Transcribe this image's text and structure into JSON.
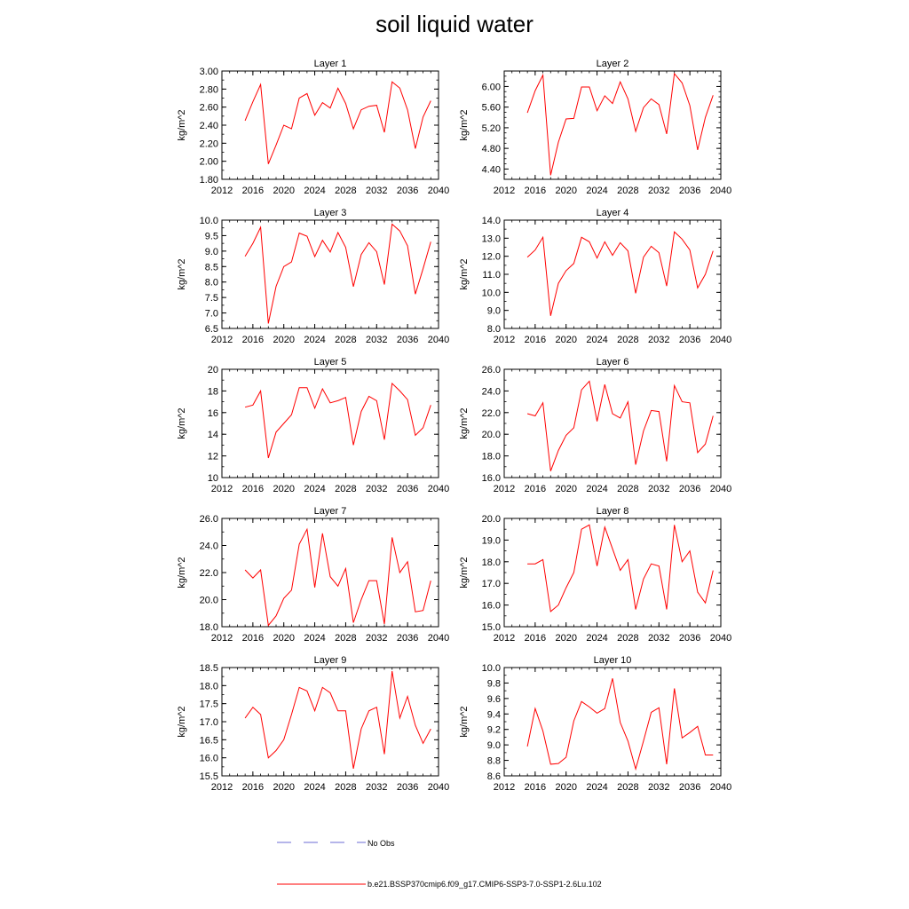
{
  "figure": {
    "title": "soil liquid water",
    "legend": [
      {
        "label": "No Obs",
        "style": "dashed",
        "color": "#6b6bd6"
      },
      {
        "label": "b.e21.BSSP370cmip6.f09_g17.CMIP6-SSP3-7.0-SSP1-2.6Lu.102",
        "style": "solid",
        "color": "#ff0000"
      }
    ]
  },
  "chart_data": [
    {
      "type": "line",
      "title": "Layer 1",
      "ylabel": "kg/m^2",
      "xlim": [
        2012,
        2040
      ],
      "xticks": [
        2012,
        2016,
        2020,
        2024,
        2028,
        2032,
        2036,
        2040
      ],
      "ylim": [
        1.8,
        3.0
      ],
      "yticks": [
        "1.80",
        "2.00",
        "2.20",
        "2.40",
        "2.60",
        "2.80",
        "3.00"
      ],
      "yminor": 0.1,
      "x": [
        2015,
        2016,
        2017,
        2018,
        2019,
        2020,
        2021,
        2022,
        2023,
        2024,
        2025,
        2026,
        2027,
        2028,
        2029,
        2030,
        2031,
        2032,
        2033,
        2034,
        2035,
        2036,
        2037,
        2038,
        2039
      ],
      "series": [
        {
          "name": "b.e21.BSSP370cmip6.f09_g17.CMIP6-SSP3-7.0-SSP1-2.6Lu.102",
          "color": "#ff0000",
          "values": [
            2.45,
            2.66,
            2.85,
            1.97,
            2.18,
            2.4,
            2.36,
            2.7,
            2.75,
            2.51,
            2.65,
            2.59,
            2.81,
            2.64,
            2.36,
            2.57,
            2.61,
            2.62,
            2.32,
            2.88,
            2.81,
            2.57,
            2.14,
            2.49,
            2.67
          ]
        }
      ]
    },
    {
      "type": "line",
      "title": "Layer 2",
      "ylabel": "kg/m^2",
      "xlim": [
        2012,
        2040
      ],
      "xticks": [
        2012,
        2016,
        2020,
        2024,
        2028,
        2032,
        2036,
        2040
      ],
      "ylim": [
        4.2,
        6.3
      ],
      "yticks": [
        "4.40",
        "4.80",
        "5.20",
        "5.60",
        "6.00"
      ],
      "ytickvals": [
        4.4,
        4.8,
        5.2,
        5.6,
        6.0
      ],
      "yminor": 0.1,
      "x": [
        2015,
        2016,
        2017,
        2018,
        2019,
        2020,
        2021,
        2022,
        2023,
        2024,
        2025,
        2026,
        2027,
        2028,
        2029,
        2030,
        2031,
        2032,
        2033,
        2034,
        2035,
        2036,
        2037,
        2038,
        2039
      ],
      "series": [
        {
          "name": "b.e21.BSSP370cmip6.f09_g17.CMIP6-SSP3-7.0-SSP1-2.6Lu.102",
          "color": "#ff0000",
          "values": [
            5.49,
            5.92,
            6.22,
            4.28,
            4.92,
            5.37,
            5.38,
            5.99,
            5.99,
            5.53,
            5.82,
            5.67,
            6.09,
            5.76,
            5.13,
            5.59,
            5.76,
            5.65,
            5.08,
            6.25,
            6.07,
            5.63,
            4.77,
            5.4,
            5.83
          ]
        }
      ]
    },
    {
      "type": "line",
      "title": "Layer 3",
      "ylabel": "kg/m^2",
      "xlim": [
        2012,
        2040
      ],
      "xticks": [
        2012,
        2016,
        2020,
        2024,
        2028,
        2032,
        2036,
        2040
      ],
      "ylim": [
        6.5,
        10.0
      ],
      "yticks": [
        "6.5",
        "7.0",
        "7.5",
        "8.0",
        "8.5",
        "9.0",
        "9.5",
        "10.0"
      ],
      "yminor": 0.25,
      "x": [
        2015,
        2016,
        2017,
        2018,
        2019,
        2020,
        2021,
        2022,
        2023,
        2024,
        2025,
        2026,
        2027,
        2028,
        2029,
        2030,
        2031,
        2032,
        2033,
        2034,
        2035,
        2036,
        2037,
        2038,
        2039
      ],
      "series": [
        {
          "name": "b.e21.BSSP370cmip6.f09_g17.CMIP6-SSP3-7.0-SSP1-2.6Lu.102",
          "color": "#ff0000",
          "values": [
            8.83,
            9.25,
            9.77,
            6.66,
            7.86,
            8.5,
            8.65,
            9.58,
            9.48,
            8.82,
            9.35,
            8.97,
            9.6,
            9.12,
            7.85,
            8.89,
            9.27,
            8.98,
            7.92,
            9.87,
            9.65,
            9.17,
            7.61,
            8.43,
            9.3
          ]
        }
      ]
    },
    {
      "type": "line",
      "title": "Layer 4",
      "ylabel": "kg/m^2",
      "xlim": [
        2012,
        2040
      ],
      "xticks": [
        2012,
        2016,
        2020,
        2024,
        2028,
        2032,
        2036,
        2040
      ],
      "ylim": [
        8.0,
        14.0
      ],
      "yticks": [
        "8.0",
        "9.0",
        "10.0",
        "11.0",
        "12.0",
        "13.0",
        "14.0"
      ],
      "yminor": 0.5,
      "x": [
        2015,
        2016,
        2017,
        2018,
        2019,
        2020,
        2021,
        2022,
        2023,
        2024,
        2025,
        2026,
        2027,
        2028,
        2029,
        2030,
        2031,
        2032,
        2033,
        2034,
        2035,
        2036,
        2037,
        2038,
        2039
      ],
      "series": [
        {
          "name": "b.e21.BSSP370cmip6.f09_g17.CMIP6-SSP3-7.0-SSP1-2.6Lu.102",
          "color": "#ff0000",
          "values": [
            11.95,
            12.35,
            13.05,
            8.7,
            10.5,
            11.2,
            11.6,
            13.05,
            12.8,
            11.9,
            12.8,
            12.05,
            12.75,
            12.3,
            9.95,
            11.95,
            12.55,
            12.2,
            10.35,
            13.35,
            12.95,
            12.35,
            10.25,
            11.0,
            12.3
          ]
        }
      ]
    },
    {
      "type": "line",
      "title": "Layer 5",
      "ylabel": "kg/m^2",
      "xlim": [
        2012,
        2040
      ],
      "xticks": [
        2012,
        2016,
        2020,
        2024,
        2028,
        2032,
        2036,
        2040
      ],
      "ylim": [
        10,
        20
      ],
      "yticks": [
        "10",
        "12",
        "14",
        "16",
        "18",
        "20"
      ],
      "yminor": 1,
      "x": [
        2015,
        2016,
        2017,
        2018,
        2019,
        2020,
        2021,
        2022,
        2023,
        2024,
        2025,
        2026,
        2027,
        2028,
        2029,
        2030,
        2031,
        2032,
        2033,
        2034,
        2035,
        2036,
        2037,
        2038,
        2039
      ],
      "series": [
        {
          "name": "b.e21.BSSP370cmip6.f09_g17.CMIP6-SSP3-7.0-SSP1-2.6Lu.102",
          "color": "#ff0000",
          "values": [
            16.5,
            16.7,
            18.0,
            11.8,
            14.2,
            15.0,
            15.8,
            18.3,
            18.3,
            16.4,
            18.2,
            16.9,
            17.1,
            17.4,
            13.0,
            16.1,
            17.5,
            17.1,
            13.5,
            18.7,
            18.0,
            17.2,
            13.9,
            14.6,
            16.7
          ]
        }
      ]
    },
    {
      "type": "line",
      "title": "Layer 6",
      "ylabel": "kg/m^2",
      "xlim": [
        2012,
        2040
      ],
      "xticks": [
        2012,
        2016,
        2020,
        2024,
        2028,
        2032,
        2036,
        2040
      ],
      "ylim": [
        16.0,
        26.0
      ],
      "yticks": [
        "16.0",
        "18.0",
        "20.0",
        "22.0",
        "24.0",
        "26.0"
      ],
      "yminor": 1,
      "x": [
        2015,
        2016,
        2017,
        2018,
        2019,
        2020,
        2021,
        2022,
        2023,
        2024,
        2025,
        2026,
        2027,
        2028,
        2029,
        2030,
        2031,
        2032,
        2033,
        2034,
        2035,
        2036,
        2037,
        2038,
        2039
      ],
      "series": [
        {
          "name": "b.e21.BSSP370cmip6.f09_g17.CMIP6-SSP3-7.0-SSP1-2.6Lu.102",
          "color": "#ff0000",
          "values": [
            21.9,
            21.7,
            22.9,
            16.6,
            18.5,
            19.9,
            20.6,
            24.1,
            24.9,
            21.2,
            24.6,
            21.9,
            21.5,
            23.0,
            17.2,
            20.3,
            22.2,
            22.1,
            17.5,
            24.5,
            23.0,
            22.9,
            18.3,
            19.1,
            21.7
          ]
        }
      ]
    },
    {
      "type": "line",
      "title": "Layer 7",
      "ylabel": "kg/m^2",
      "xlim": [
        2012,
        2040
      ],
      "xticks": [
        2012,
        2016,
        2020,
        2024,
        2028,
        2032,
        2036,
        2040
      ],
      "ylim": [
        18.0,
        26.0
      ],
      "yticks": [
        "18.0",
        "20.0",
        "22.0",
        "24.0",
        "26.0"
      ],
      "yminor": 1,
      "x": [
        2015,
        2016,
        2017,
        2018,
        2019,
        2020,
        2021,
        2022,
        2023,
        2024,
        2025,
        2026,
        2027,
        2028,
        2029,
        2030,
        2031,
        2032,
        2033,
        2034,
        2035,
        2036,
        2037,
        2038,
        2039
      ],
      "series": [
        {
          "name": "b.e21.BSSP370cmip6.f09_g17.CMIP6-SSP3-7.0-SSP1-2.6Lu.102",
          "color": "#ff0000",
          "values": [
            22.2,
            21.6,
            22.2,
            18.1,
            18.8,
            20.1,
            20.7,
            24.1,
            25.2,
            20.9,
            24.9,
            21.7,
            21.0,
            22.3,
            18.3,
            20.0,
            21.4,
            21.4,
            18.2,
            24.6,
            22.0,
            22.8,
            19.1,
            19.2,
            21.4
          ]
        }
      ]
    },
    {
      "type": "line",
      "title": "Layer 8",
      "ylabel": "kg/m^2",
      "xlim": [
        2012,
        2040
      ],
      "xticks": [
        2012,
        2016,
        2020,
        2024,
        2028,
        2032,
        2036,
        2040
      ],
      "ylim": [
        15.0,
        20.0
      ],
      "yticks": [
        "15.0",
        "16.0",
        "17.0",
        "18.0",
        "19.0",
        "20.0"
      ],
      "yminor": 0.5,
      "x": [
        2015,
        2016,
        2017,
        2018,
        2019,
        2020,
        2021,
        2022,
        2023,
        2024,
        2025,
        2026,
        2027,
        2028,
        2029,
        2030,
        2031,
        2032,
        2033,
        2034,
        2035,
        2036,
        2037,
        2038,
        2039
      ],
      "series": [
        {
          "name": "b.e21.BSSP370cmip6.f09_g17.CMIP6-SSP3-7.0-SSP1-2.6Lu.102",
          "color": "#ff0000",
          "values": [
            17.9,
            17.9,
            18.1,
            15.7,
            16.0,
            16.8,
            17.5,
            19.5,
            19.7,
            17.8,
            19.6,
            18.6,
            17.6,
            18.1,
            15.8,
            17.2,
            17.9,
            17.8,
            15.8,
            19.7,
            18.0,
            18.5,
            16.6,
            16.1,
            17.6
          ]
        }
      ]
    },
    {
      "type": "line",
      "title": "Layer 9",
      "ylabel": "kg/m^2",
      "xlim": [
        2012,
        2040
      ],
      "xticks": [
        2012,
        2016,
        2020,
        2024,
        2028,
        2032,
        2036,
        2040
      ],
      "ylim": [
        15.5,
        18.5
      ],
      "yticks": [
        "15.5",
        "16.0",
        "16.5",
        "17.0",
        "17.5",
        "18.0",
        "18.5"
      ],
      "yminor": 0.25,
      "x": [
        2015,
        2016,
        2017,
        2018,
        2019,
        2020,
        2021,
        2022,
        2023,
        2024,
        2025,
        2026,
        2027,
        2028,
        2029,
        2030,
        2031,
        2032,
        2033,
        2034,
        2035,
        2036,
        2037,
        2038,
        2039
      ],
      "series": [
        {
          "name": "b.e21.BSSP370cmip6.f09_g17.CMIP6-SSP3-7.0-SSP1-2.6Lu.102",
          "color": "#ff0000",
          "values": [
            17.1,
            17.4,
            17.2,
            16.0,
            16.2,
            16.5,
            17.2,
            17.95,
            17.85,
            17.3,
            17.95,
            17.8,
            17.3,
            17.3,
            15.7,
            16.8,
            17.3,
            17.4,
            16.1,
            18.4,
            17.1,
            17.7,
            16.9,
            16.4,
            16.8
          ]
        }
      ]
    },
    {
      "type": "line",
      "title": "Layer 10",
      "ylabel": "kg/m^2",
      "xlim": [
        2012,
        2040
      ],
      "xticks": [
        2012,
        2016,
        2020,
        2024,
        2028,
        2032,
        2036,
        2040
      ],
      "ylim": [
        8.6,
        10.0
      ],
      "yticks": [
        "8.6",
        "8.8",
        "9.0",
        "9.2",
        "9.4",
        "9.6",
        "9.8",
        "10.0"
      ],
      "yminor": 0.1,
      "x": [
        2015,
        2016,
        2017,
        2018,
        2019,
        2020,
        2021,
        2022,
        2023,
        2024,
        2025,
        2026,
        2027,
        2028,
        2029,
        2030,
        2031,
        2032,
        2033,
        2034,
        2035,
        2036,
        2037,
        2038,
        2039
      ],
      "series": [
        {
          "name": "b.e21.BSSP370cmip6.f09_g17.CMIP6-SSP3-7.0-SSP1-2.6Lu.102",
          "color": "#ff0000",
          "values": [
            8.98,
            9.47,
            9.18,
            8.75,
            8.76,
            8.84,
            9.31,
            9.56,
            9.49,
            9.41,
            9.47,
            9.86,
            9.29,
            9.05,
            8.69,
            9.05,
            9.42,
            9.48,
            8.75,
            9.73,
            9.09,
            9.16,
            9.24,
            8.87,
            8.87
          ]
        }
      ]
    }
  ]
}
